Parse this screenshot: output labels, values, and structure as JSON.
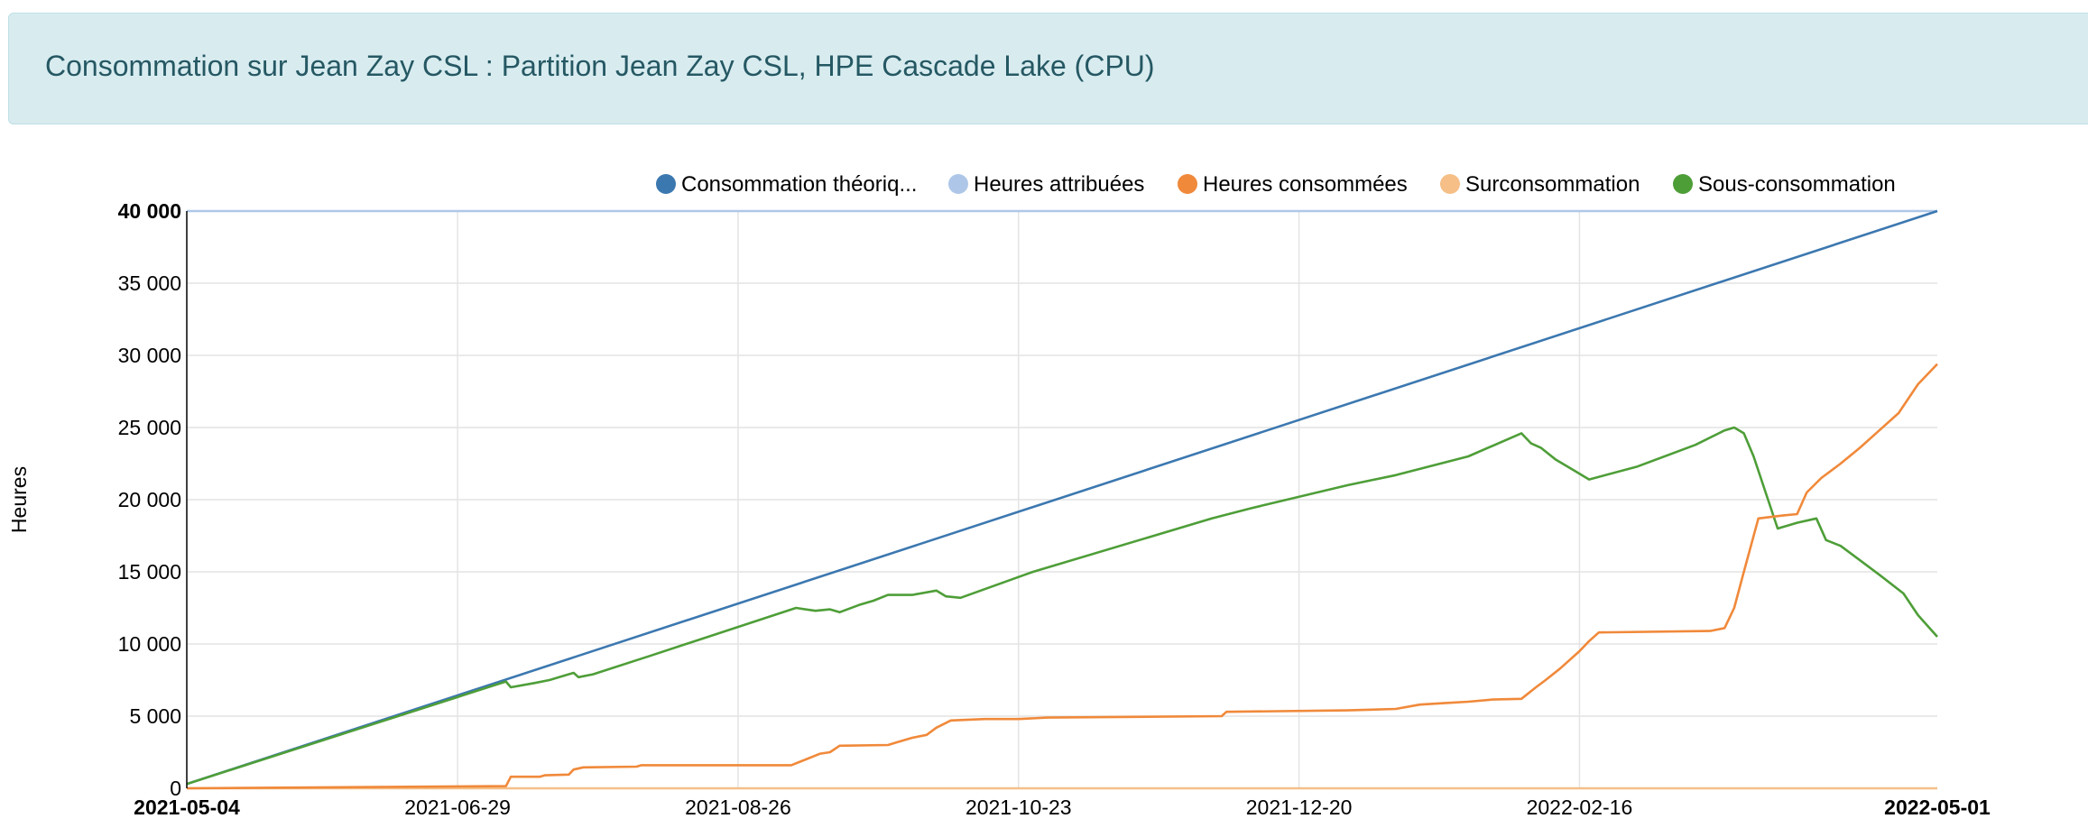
{
  "header": {
    "title": "Consommation sur Jean Zay CSL : Partition Jean Zay CSL, HPE Cascade Lake (CPU)"
  },
  "colors": {
    "theorique": "#3c78b0",
    "attribuees": "#aec7e8",
    "consommees": "#f0893a",
    "surconsommation": "#f5bf87",
    "sousconsommation": "#4e9e38",
    "grid": "#e4e4e4"
  },
  "chart_data": {
    "type": "line",
    "title": "",
    "xlabel": "",
    "ylabel": "Heures",
    "x_domain_days": [
      0,
      362
    ],
    "ylim": [
      0,
      40000
    ],
    "y_ticks": [
      {
        "value": 0,
        "label": "0"
      },
      {
        "value": 5000,
        "label": "5 000"
      },
      {
        "value": 10000,
        "label": "10 000"
      },
      {
        "value": 15000,
        "label": "15 000"
      },
      {
        "value": 20000,
        "label": "20 000"
      },
      {
        "value": 25000,
        "label": "25 000"
      },
      {
        "value": 30000,
        "label": "30 000"
      },
      {
        "value": 35000,
        "label": "35 000"
      },
      {
        "value": 40000,
        "label": "40 000"
      }
    ],
    "x_ticks": [
      {
        "day": 0,
        "label": "2021-05-04",
        "bold": true
      },
      {
        "day": 56,
        "label": "2021-06-29",
        "bold": false
      },
      {
        "day": 114,
        "label": "2021-08-26",
        "bold": false
      },
      {
        "day": 172,
        "label": "2021-10-23",
        "bold": false
      },
      {
        "day": 230,
        "label": "2021-12-20",
        "bold": false
      },
      {
        "day": 288,
        "label": "2022-02-16",
        "bold": false
      },
      {
        "day": 362,
        "label": "2022-05-01",
        "bold": true
      }
    ],
    "legend": [
      {
        "key": "theorique",
        "label": "Consommation théoriq..."
      },
      {
        "key": "attribuees",
        "label": "Heures attribuées"
      },
      {
        "key": "consommees",
        "label": "Heures consommées"
      },
      {
        "key": "surconsommation",
        "label": "Surconsommation"
      },
      {
        "key": "sousconsommation",
        "label": "Sous-consommation"
      }
    ],
    "series": [
      {
        "key": "theorique",
        "name": "Consommation théorique",
        "points": [
          [
            0,
            300
          ],
          [
            362,
            40000
          ]
        ]
      },
      {
        "key": "attribuees",
        "name": "Heures attribuées",
        "points": [
          [
            0,
            40000
          ],
          [
            362,
            40000
          ]
        ]
      },
      {
        "key": "consommees",
        "name": "Heures consommées",
        "points": [
          [
            0,
            0
          ],
          [
            56,
            130
          ],
          [
            66,
            150
          ],
          [
            67,
            800
          ],
          [
            73,
            800
          ],
          [
            74,
            900
          ],
          [
            79,
            950
          ],
          [
            80,
            1300
          ],
          [
            82,
            1450
          ],
          [
            93,
            1500
          ],
          [
            94,
            1600
          ],
          [
            125,
            1600
          ],
          [
            128,
            2000
          ],
          [
            131,
            2400
          ],
          [
            133,
            2500
          ],
          [
            135,
            2950
          ],
          [
            145,
            3000
          ],
          [
            147,
            3200
          ],
          [
            150,
            3500
          ],
          [
            153,
            3700
          ],
          [
            155,
            4200
          ],
          [
            158,
            4700
          ],
          [
            165,
            4800
          ],
          [
            172,
            4800
          ],
          [
            178,
            4900
          ],
          [
            214,
            5000
          ],
          [
            215,
            5300
          ],
          [
            240,
            5400
          ],
          [
            250,
            5500
          ],
          [
            255,
            5800
          ],
          [
            260,
            5900
          ],
          [
            265,
            6000
          ],
          [
            270,
            6150
          ],
          [
            276,
            6200
          ],
          [
            279,
            7000
          ],
          [
            281,
            7500
          ],
          [
            284,
            8300
          ],
          [
            288,
            9500
          ],
          [
            290,
            10200
          ],
          [
            292,
            10800
          ],
          [
            315,
            10900
          ],
          [
            318,
            11100
          ],
          [
            320,
            12500
          ],
          [
            322,
            15000
          ],
          [
            325,
            18700
          ],
          [
            330,
            18900
          ],
          [
            333,
            19000
          ],
          [
            335,
            20500
          ],
          [
            338,
            21500
          ],
          [
            342,
            22500
          ],
          [
            346,
            23600
          ],
          [
            350,
            24800
          ],
          [
            354,
            26000
          ],
          [
            358,
            28000
          ],
          [
            362,
            29400
          ]
        ]
      },
      {
        "key": "surconsommation",
        "name": "Surconsommation",
        "points": [
          [
            0,
            0
          ],
          [
            362,
            0
          ]
        ]
      },
      {
        "key": "sousconsommation",
        "name": "Sous-consommation",
        "points": [
          [
            0,
            300
          ],
          [
            66,
            7400
          ],
          [
            67,
            7000
          ],
          [
            72,
            7300
          ],
          [
            75,
            7500
          ],
          [
            77,
            7700
          ],
          [
            80,
            8000
          ],
          [
            81,
            7700
          ],
          [
            84,
            7900
          ],
          [
            96,
            9200
          ],
          [
            126,
            12500
          ],
          [
            130,
            12300
          ],
          [
            133,
            12400
          ],
          [
            135,
            12200
          ],
          [
            139,
            12700
          ],
          [
            142,
            13000
          ],
          [
            145,
            13400
          ],
          [
            150,
            13400
          ],
          [
            155,
            13700
          ],
          [
            157,
            13300
          ],
          [
            160,
            13200
          ],
          [
            175,
            15000
          ],
          [
            212,
            18700
          ],
          [
            220,
            19400
          ],
          [
            240,
            21000
          ],
          [
            250,
            21700
          ],
          [
            265,
            23000
          ],
          [
            276,
            24600
          ],
          [
            278,
            23900
          ],
          [
            280,
            23600
          ],
          [
            283,
            22800
          ],
          [
            287,
            22000
          ],
          [
            290,
            21400
          ],
          [
            300,
            22300
          ],
          [
            312,
            23800
          ],
          [
            318,
            24800
          ],
          [
            320,
            25000
          ],
          [
            322,
            24600
          ],
          [
            324,
            23000
          ],
          [
            327,
            20000
          ],
          [
            329,
            18000
          ],
          [
            333,
            18400
          ],
          [
            337,
            18700
          ],
          [
            339,
            17200
          ],
          [
            342,
            16800
          ],
          [
            346,
            15800
          ],
          [
            350,
            14800
          ],
          [
            355,
            13500
          ],
          [
            358,
            12000
          ],
          [
            362,
            10500
          ]
        ]
      }
    ]
  }
}
